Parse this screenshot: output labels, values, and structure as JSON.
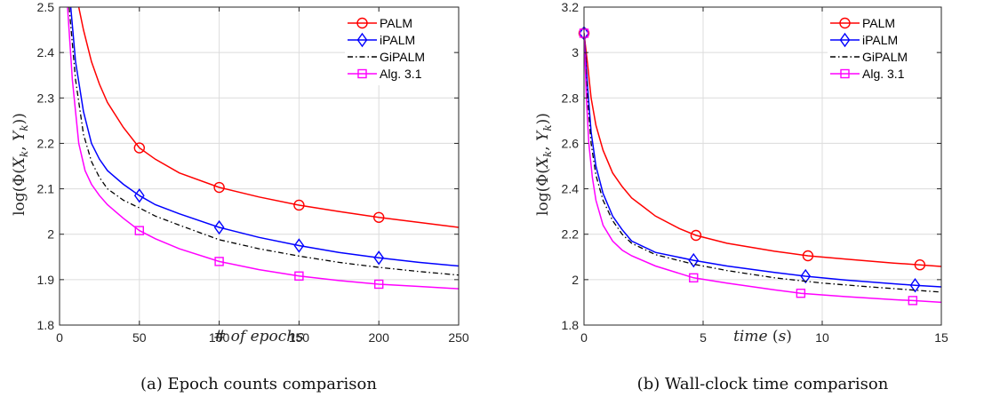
{
  "series_names": [
    "PALM",
    "iPALM",
    "GiPALM",
    "Alg. 3.1"
  ],
  "colors": {
    "PALM": "#ff0000",
    "iPALM": "#0000ff",
    "GiPALM": "#000000",
    "Alg. 3.1": "#ff00ff"
  },
  "chart_data": [
    {
      "type": "line",
      "title": "",
      "caption": "(a) Epoch counts comparison",
      "xlabel": "# of epochs",
      "ylabel": "log(Φ(X_k, Y_k))",
      "xlim": [
        0,
        250
      ],
      "ylim": [
        1.8,
        2.5
      ],
      "xticks": [
        0,
        50,
        100,
        150,
        200,
        250
      ],
      "yticks": [
        1.8,
        1.9,
        2.0,
        2.1,
        2.2,
        2.3,
        2.4,
        2.5
      ],
      "xticklabels": [
        "0",
        "50",
        "100",
        "150",
        "200",
        "250"
      ],
      "yticklabels": [
        "1.8",
        "1.9",
        "2",
        "2.1",
        "2.2",
        "2.3",
        "2.4",
        "2.5"
      ],
      "grid": true,
      "legend": "top-right",
      "series": [
        {
          "name": "PALM",
          "marker": "circle",
          "style": "solid",
          "x": [
            12,
            15,
            20,
            25,
            30,
            40,
            50,
            60,
            75,
            100,
            125,
            150,
            175,
            200,
            225,
            250
          ],
          "y": [
            2.5,
            2.45,
            2.38,
            2.33,
            2.29,
            2.235,
            2.19,
            2.165,
            2.135,
            2.103,
            2.082,
            2.064,
            2.05,
            2.037,
            2.026,
            2.015
          ],
          "markers_x": [
            50,
            100,
            150,
            200
          ]
        },
        {
          "name": "iPALM",
          "marker": "diamond",
          "style": "solid",
          "x": [
            7,
            10,
            15,
            20,
            25,
            30,
            40,
            50,
            60,
            75,
            100,
            125,
            150,
            175,
            200,
            225,
            250
          ],
          "y": [
            2.5,
            2.38,
            2.27,
            2.2,
            2.165,
            2.14,
            2.11,
            2.085,
            2.065,
            2.045,
            2.015,
            1.993,
            1.975,
            1.96,
            1.948,
            1.938,
            1.93
          ],
          "markers_x": [
            50,
            100,
            150,
            200
          ]
        },
        {
          "name": "GiPALM",
          "marker": "none",
          "style": "dashdot",
          "x": [
            6,
            10,
            15,
            20,
            25,
            30,
            40,
            50,
            60,
            75,
            100,
            125,
            150,
            175,
            200,
            225,
            250
          ],
          "y": [
            2.5,
            2.34,
            2.22,
            2.16,
            2.125,
            2.1,
            2.075,
            2.058,
            2.04,
            2.02,
            1.988,
            1.968,
            1.952,
            1.938,
            1.927,
            1.918,
            1.91
          ],
          "markers_x": []
        },
        {
          "name": "Alg. 3.1",
          "marker": "square",
          "style": "solid",
          "x": [
            5,
            8,
            12,
            16,
            20,
            25,
            30,
            40,
            50,
            60,
            75,
            100,
            125,
            150,
            175,
            200,
            225,
            250
          ],
          "y": [
            2.5,
            2.34,
            2.2,
            2.14,
            2.11,
            2.085,
            2.065,
            2.035,
            2.008,
            1.99,
            1.968,
            1.94,
            1.922,
            1.908,
            1.898,
            1.89,
            1.885,
            1.88
          ],
          "markers_x": [
            50,
            100,
            150,
            200
          ]
        }
      ]
    },
    {
      "type": "line",
      "title": "",
      "caption": "(b) Wall-clock time comparison",
      "xlabel": "time (s)",
      "ylabel": "log(Φ(X_k, Y_k))",
      "xlim": [
        0,
        15
      ],
      "ylim": [
        1.8,
        3.2
      ],
      "xticks": [
        0,
        5,
        10,
        15
      ],
      "yticks": [
        1.8,
        2.0,
        2.2,
        2.4,
        2.6,
        2.8,
        3.0,
        3.2
      ],
      "xticklabels": [
        "0",
        "5",
        "10",
        "15"
      ],
      "yticklabels": [
        "1.8",
        "2",
        "2.2",
        "2.4",
        "2.6",
        "2.8",
        "3",
        "3.2"
      ],
      "grid": true,
      "legend": "top-right",
      "series": [
        {
          "name": "PALM",
          "marker": "circle",
          "style": "solid",
          "x": [
            0,
            0.15,
            0.3,
            0.5,
            0.8,
            1.2,
            1.6,
            2.0,
            2.5,
            3.0,
            4.0,
            4.7,
            6.0,
            8.0,
            9.4,
            11.0,
            13.0,
            14.1,
            15.0
          ],
          "y": [
            3.085,
            2.95,
            2.8,
            2.68,
            2.57,
            2.47,
            2.41,
            2.36,
            2.32,
            2.28,
            2.225,
            2.195,
            2.16,
            2.125,
            2.105,
            2.09,
            2.073,
            2.065,
            2.058
          ],
          "markers_x": [
            0,
            4.7,
            9.4,
            14.1
          ]
        },
        {
          "name": "iPALM",
          "marker": "diamond",
          "style": "solid",
          "x": [
            0,
            0.15,
            0.3,
            0.5,
            0.8,
            1.2,
            1.6,
            2.0,
            3.0,
            4.6,
            6.0,
            8.0,
            9.3,
            11.0,
            13.0,
            13.9,
            15.0
          ],
          "y": [
            3.085,
            2.85,
            2.65,
            2.5,
            2.38,
            2.28,
            2.22,
            2.17,
            2.12,
            2.085,
            2.06,
            2.032,
            2.015,
            1.998,
            1.982,
            1.975,
            1.968
          ],
          "markers_x": [
            0,
            4.6,
            9.3,
            13.9
          ]
        },
        {
          "name": "GiPALM",
          "marker": "none",
          "style": "dashdot",
          "x": [
            0,
            0.15,
            0.3,
            0.5,
            0.8,
            1.2,
            1.6,
            2.0,
            3.0,
            4.6,
            6.0,
            8.0,
            10.0,
            12.0,
            15.0
          ],
          "y": [
            3.085,
            2.8,
            2.6,
            2.46,
            2.35,
            2.26,
            2.2,
            2.16,
            2.11,
            2.068,
            2.04,
            2.008,
            1.985,
            1.968,
            1.945
          ],
          "markers_x": []
        },
        {
          "name": "Alg. 3.1",
          "marker": "square",
          "style": "solid",
          "x": [
            0,
            0.1,
            0.2,
            0.35,
            0.5,
            0.8,
            1.2,
            1.6,
            2.0,
            3.0,
            4.6,
            6.0,
            8.0,
            9.1,
            11.0,
            13.0,
            13.8,
            15.0
          ],
          "y": [
            3.085,
            2.8,
            2.6,
            2.45,
            2.35,
            2.24,
            2.17,
            2.13,
            2.105,
            2.06,
            2.008,
            1.985,
            1.955,
            1.94,
            1.925,
            1.912,
            1.908,
            1.9
          ],
          "markers_x": [
            0,
            4.6,
            9.1,
            13.8
          ]
        }
      ]
    }
  ]
}
